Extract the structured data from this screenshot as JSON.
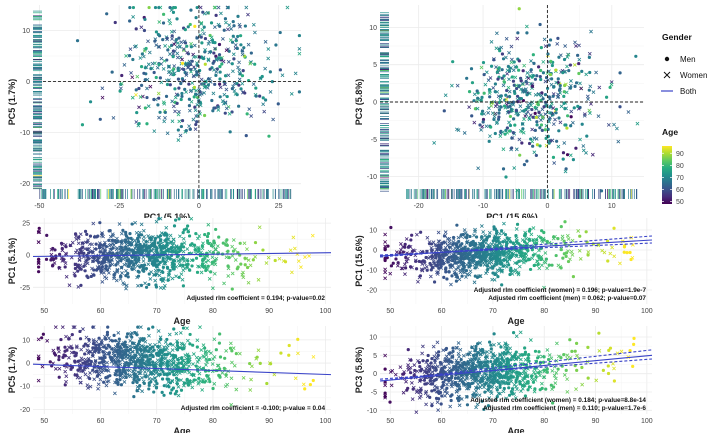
{
  "chart_data": [
    {
      "type": "scatter",
      "kind": "pca",
      "xlabel": "PC1 (5.1%)",
      "ylabel": "PC5 (1.7%)",
      "xlim": [
        -52,
        32
      ],
      "ylim": [
        -23,
        15
      ],
      "xticks": [
        -50,
        -25,
        0,
        25
      ],
      "yticks": [
        -20,
        -10,
        0,
        10
      ],
      "cloud": {
        "n": 520,
        "center": [
          0,
          3
        ],
        "sd": [
          12,
          6
        ],
        "seed": 11
      },
      "x_rug_range": [
        -50,
        30
      ],
      "y_rug_range": [
        -21,
        14
      ]
    },
    {
      "type": "scatter",
      "kind": "pca",
      "xlabel": "PC1 (15.6%)",
      "ylabel": "PC3 (5.8%)",
      "xlim": [
        -26,
        15
      ],
      "ylim": [
        -13,
        13
      ],
      "xticks": [
        -20,
        -10,
        0,
        10
      ],
      "yticks": [
        -10,
        -5,
        0,
        5,
        10
      ],
      "cloud": {
        "n": 520,
        "center": [
          -2,
          0
        ],
        "sd": [
          5.5,
          4
        ],
        "seed": 23
      },
      "x_rug_range": [
        -22,
        14
      ],
      "y_rug_range": [
        -12,
        12
      ]
    },
    {
      "type": "scatter",
      "kind": "regression",
      "xlabel": "Age",
      "ylabel": "PC1 (5.1%)",
      "xlim": [
        48,
        101
      ],
      "ylim": [
        -38,
        29
      ],
      "xticks": [
        50,
        60,
        70,
        80,
        90,
        100
      ],
      "yticks": [
        -25,
        0,
        25
      ],
      "cloud": {
        "n": 900,
        "sd_y": 10,
        "seed": 37
      },
      "fit_lines": [
        {
          "name": "Both",
          "style": "solid",
          "x": [
            48,
            101
          ],
          "y": [
            -1,
            2
          ]
        }
      ],
      "annotations": [
        "Adjusted rlm coefficient = 0.194; p-value=0.02"
      ]
    },
    {
      "type": "scatter",
      "kind": "regression",
      "xlabel": "Age",
      "ylabel": "PC1 (15.6%)",
      "xlim": [
        48,
        101
      ],
      "ylim": [
        -27,
        16
      ],
      "xticks": [
        50,
        60,
        70,
        80,
        90,
        100
      ],
      "yticks": [
        -20,
        -10,
        0,
        10
      ],
      "cloud": {
        "n": 900,
        "sd_y": 5.5,
        "seed": 41,
        "trend": [
          -5,
          2
        ]
      },
      "fit_lines": [
        {
          "name": "Women",
          "style": "dashed",
          "x": [
            48,
            101
          ],
          "y": [
            -3.5,
            7
          ]
        },
        {
          "name": "Men",
          "style": "dashed",
          "x": [
            48,
            101
          ],
          "y": [
            -2.5,
            3.5
          ]
        },
        {
          "name": "Both",
          "style": "solid",
          "x": [
            48,
            101
          ],
          "y": [
            -3,
            5
          ]
        }
      ],
      "annotations": [
        "Adjusted rlm coefficient (women) = 0.196; p-value=1.9e-7",
        "Adjusted rlm coefficient (men) = 0.062; p-value=0.07"
      ]
    },
    {
      "type": "scatter",
      "kind": "regression",
      "xlabel": "Age",
      "ylabel": "PC5 (1.7%)",
      "xlim": [
        48,
        101
      ],
      "ylim": [
        -22,
        16
      ],
      "xticks": [
        50,
        60,
        70,
        80,
        90,
        100
      ],
      "yticks": [
        -20,
        -10,
        0,
        10
      ],
      "cloud": {
        "n": 900,
        "sd_y": 6,
        "seed": 53,
        "trend": [
          3,
          -3
        ]
      },
      "fit_lines": [
        {
          "name": "Both",
          "style": "solid",
          "x": [
            48,
            101
          ],
          "y": [
            -0.5,
            -5
          ]
        }
      ],
      "annotations": [
        "Adjusted rlm coefficient = -0.100; p-value = 0.04"
      ]
    },
    {
      "type": "scatter",
      "kind": "regression",
      "xlabel": "Age",
      "ylabel": "PC3 (5.8%)",
      "xlim": [
        48,
        101
      ],
      "ylim": [
        -11,
        13
      ],
      "xticks": [
        50,
        60,
        70,
        80,
        90,
        100
      ],
      "yticks": [
        -10,
        -5,
        0,
        5,
        10
      ],
      "cloud": {
        "n": 900,
        "sd_y": 3.5,
        "seed": 67,
        "trend": [
          -2,
          4
        ]
      },
      "fit_lines": [
        {
          "name": "Women",
          "style": "dashed",
          "x": [
            48,
            101
          ],
          "y": [
            -2,
            6.5
          ]
        },
        {
          "name": "Men",
          "style": "dashed",
          "x": [
            48,
            101
          ],
          "y": [
            -1.5,
            4
          ]
        },
        {
          "name": "Both",
          "style": "solid",
          "x": [
            48,
            101
          ],
          "y": [
            -2,
            5
          ]
        }
      ],
      "annotations": [
        "Adjusted rlm coefficient (women) = 0.184; p-value=8.8e-14",
        "Adjusted rlm coefficient (men) = 0.110; p-value=1.7e-6"
      ]
    }
  ],
  "legend": {
    "gender_title": "Gender",
    "gender_items": [
      {
        "label": "Men",
        "marker": "dot"
      },
      {
        "label": "Women",
        "marker": "cross"
      },
      {
        "label": "Both",
        "marker": "line"
      }
    ],
    "age_title": "Age",
    "age_ticks": [
      90,
      80,
      70,
      60,
      50
    ],
    "age_range": [
      48,
      96
    ]
  },
  "colors": {
    "viridis": [
      "#440154",
      "#472d7b",
      "#3b528b",
      "#2c728e",
      "#21918c",
      "#28ae80",
      "#5ec962",
      "#addc30",
      "#fde725"
    ],
    "fit_line": "#3a44c8",
    "zero_line": "#222222"
  }
}
